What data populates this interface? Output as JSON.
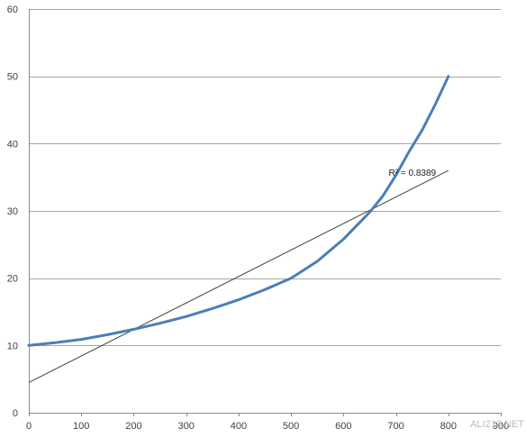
{
  "chart_data": {
    "type": "line",
    "title": "",
    "xlabel": "",
    "ylabel": "",
    "xlim": [
      0,
      900
    ],
    "ylim": [
      0,
      60
    ],
    "x_ticks": [
      "0",
      "100",
      "200",
      "300",
      "400",
      "500",
      "600",
      "700",
      "800",
      "900"
    ],
    "y_ticks": [
      "0",
      "10",
      "20",
      "30",
      "40",
      "50",
      "60"
    ],
    "grid": true,
    "series": [
      {
        "color": "#4a7ebb",
        "x": [
          0,
          50,
          100,
          150,
          200,
          250,
          300,
          350,
          400,
          450,
          500,
          550,
          600,
          625,
          650,
          675,
          700,
          725,
          750,
          775,
          800
        ],
        "y": [
          10,
          10.4,
          10.9,
          11.6,
          12.4,
          13.3,
          14.3,
          15.5,
          16.8,
          18.3,
          20.0,
          22.5,
          25.8,
          27.8,
          29.8,
          32.2,
          35.3,
          38.8,
          42.0,
          45.8,
          50
        ]
      }
    ],
    "trendline": {
      "color": "#404040",
      "x": [
        0,
        800
      ],
      "y": [
        4.5,
        36
      ],
      "annotation": "R² = 0.8389"
    }
  },
  "watermark": "ALI213.NET"
}
